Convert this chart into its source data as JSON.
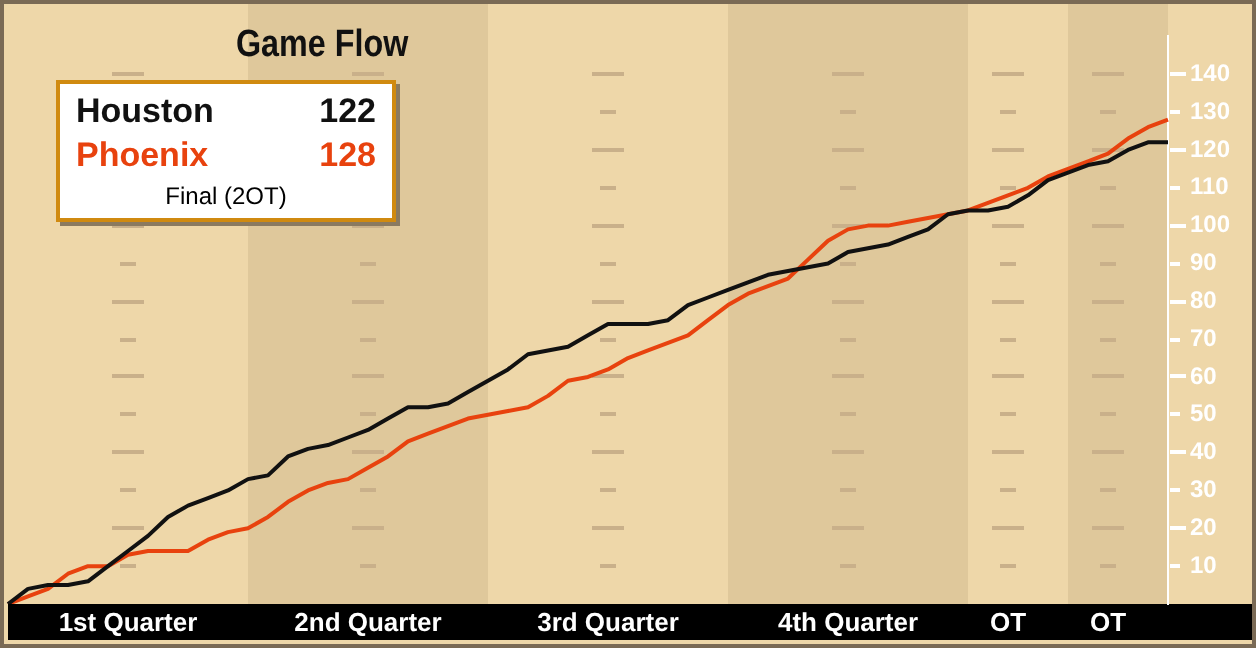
{
  "chart_data": {
    "type": "line",
    "title": "Game Flow",
    "annotations": [
      "122",
      "128",
      "Final (2OT)"
    ],
    "legend": "top left",
    "marker": "none",
    "line_style": "solid",
    "categories": [
      null,
      null,
      null,
      null,
      null,
      null,
      "1st Quarter",
      null,
      null,
      null,
      null,
      null,
      null,
      null,
      null,
      null,
      null,
      null,
      "2nd Quarter",
      null,
      null,
      null,
      null,
      null,
      null,
      null,
      null,
      null,
      null,
      null,
      "3rd Quarter",
      null,
      null,
      null,
      null,
      null,
      null,
      null,
      null,
      null,
      null,
      null,
      "4th Quarter",
      null,
      null,
      null,
      null,
      null,
      null,
      null,
      "OT",
      null,
      null,
      null,
      null,
      "OT",
      null,
      null,
      null
    ],
    "ylim": [
      0,
      150
    ],
    "yticks": [
      10,
      20,
      30,
      40,
      50,
      60,
      70,
      80,
      90,
      100,
      110,
      120,
      130,
      140
    ],
    "series": [
      {
        "name": "Houston",
        "color": "#111111",
        "values": [
          0,
          4,
          5,
          5,
          6,
          10,
          14,
          18,
          23,
          26,
          28,
          30,
          33,
          34,
          39,
          41,
          42,
          44,
          46,
          49,
          52,
          52,
          53,
          56,
          59,
          62,
          66,
          67,
          68,
          71,
          74,
          74,
          74,
          75,
          79,
          81,
          83,
          85,
          87,
          88,
          89,
          90,
          93,
          94,
          95,
          97,
          99,
          103,
          104,
          104,
          105,
          108,
          112,
          114,
          116,
          117,
          120,
          122,
          122
        ]
      },
      {
        "name": "Phoenix",
        "color": "#e8420e",
        "values": [
          0,
          2,
          4,
          8,
          10,
          10,
          13,
          14,
          14,
          14,
          17,
          19,
          20,
          23,
          27,
          30,
          32,
          33,
          36,
          39,
          43,
          45,
          47,
          49,
          50,
          51,
          52,
          55,
          59,
          60,
          62,
          65,
          67,
          69,
          71,
          75,
          79,
          82,
          84,
          86,
          91,
          96,
          99,
          100,
          100,
          101,
          102,
          103,
          104,
          106,
          108,
          110,
          113,
          115,
          117,
          119,
          123,
          126,
          128
        ]
      }
    ]
  }
}
